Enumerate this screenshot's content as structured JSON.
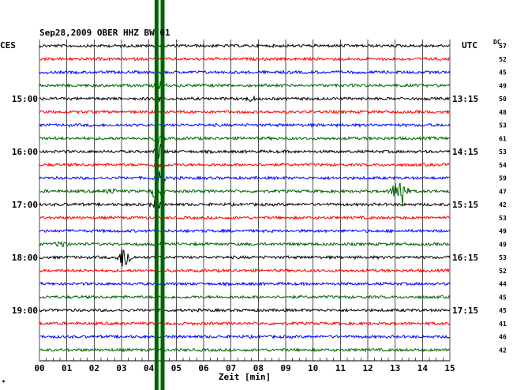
{
  "chart_data": {
    "type": "line",
    "title": "Sep28,2009   OBER HHZ BW 01",
    "left_zone": "CES",
    "right_zone": "UTC",
    "dc_label": "DC",
    "xlabel": "Zeit [min]",
    "x_ticks": [
      "00",
      "01",
      "02",
      "03",
      "04",
      "05",
      "06",
      "07",
      "08",
      "09",
      "10",
      "11",
      "12",
      "13",
      "14",
      "15"
    ],
    "xlim": [
      0,
      15
    ],
    "trace_colors": [
      "#000000",
      "#ff0000",
      "#0000ff",
      "#006400"
    ],
    "traces": [
      {
        "dc": "57",
        "left_label": "",
        "right_label": ""
      },
      {
        "dc": "52",
        "left_label": "",
        "right_label": ""
      },
      {
        "dc": "45",
        "left_label": "",
        "right_label": ""
      },
      {
        "dc": "49",
        "left_label": "",
        "right_label": ""
      },
      {
        "dc": "50",
        "left_label": "15:00",
        "right_label": "13:15"
      },
      {
        "dc": "48",
        "left_label": "",
        "right_label": ""
      },
      {
        "dc": "53",
        "left_label": "",
        "right_label": ""
      },
      {
        "dc": "61",
        "left_label": "",
        "right_label": ""
      },
      {
        "dc": "53",
        "left_label": "16:00",
        "right_label": "14:15"
      },
      {
        "dc": "54",
        "left_label": "",
        "right_label": ""
      },
      {
        "dc": "59",
        "left_label": "",
        "right_label": ""
      },
      {
        "dc": "47",
        "left_label": "",
        "right_label": ""
      },
      {
        "dc": "42",
        "left_label": "17:00",
        "right_label": "15:15"
      },
      {
        "dc": "53",
        "left_label": "",
        "right_label": ""
      },
      {
        "dc": "49",
        "left_label": "",
        "right_label": ""
      },
      {
        "dc": "49",
        "left_label": "",
        "right_label": ""
      },
      {
        "dc": "53",
        "left_label": "18:00",
        "right_label": "16:15"
      },
      {
        "dc": "52",
        "left_label": "",
        "right_label": ""
      },
      {
        "dc": "44",
        "left_label": "",
        "right_label": ""
      },
      {
        "dc": "45",
        "left_label": "",
        "right_label": ""
      },
      {
        "dc": "45",
        "left_label": "19:00",
        "right_label": "17:15"
      },
      {
        "dc": "41",
        "left_label": "",
        "right_label": ""
      },
      {
        "dc": "46",
        "left_label": "",
        "right_label": ""
      },
      {
        "dc": "42",
        "left_label": "",
        "right_label": ""
      }
    ],
    "events": [
      {
        "trace": 3,
        "minute": 4.4,
        "amp": 6
      },
      {
        "trace": 4,
        "minute": 4.4,
        "amp": 5
      },
      {
        "trace": 4,
        "minute": 7.7,
        "amp": 4
      },
      {
        "trace": 7,
        "minute": 4.4,
        "amp": 8
      },
      {
        "trace": 8,
        "minute": 4.4,
        "amp": 12
      },
      {
        "trace": 9,
        "minute": 4.4,
        "amp": 10
      },
      {
        "trace": 10,
        "minute": 4.4,
        "amp": 14
      },
      {
        "trace": 11,
        "minute": 4.3,
        "amp": 22
      },
      {
        "trace": 11,
        "minute": 2.6,
        "amp": 5
      },
      {
        "trace": 11,
        "minute": 13.0,
        "amp": 14
      },
      {
        "trace": 11,
        "minute": 13.25,
        "amp": 28
      },
      {
        "trace": 12,
        "minute": 4.3,
        "amp": 12
      },
      {
        "trace": 15,
        "minute": 0.8,
        "amp": 7
      },
      {
        "trace": 16,
        "minute": 3.05,
        "amp": 14
      },
      {
        "trace": 16,
        "minute": 3.2,
        "amp": 12
      }
    ],
    "markers": [
      {
        "minute": 4.28,
        "color": "#006400"
      },
      {
        "minute": 4.5,
        "color": "#006400"
      }
    ],
    "grid": true,
    "footer_mark": "*"
  }
}
